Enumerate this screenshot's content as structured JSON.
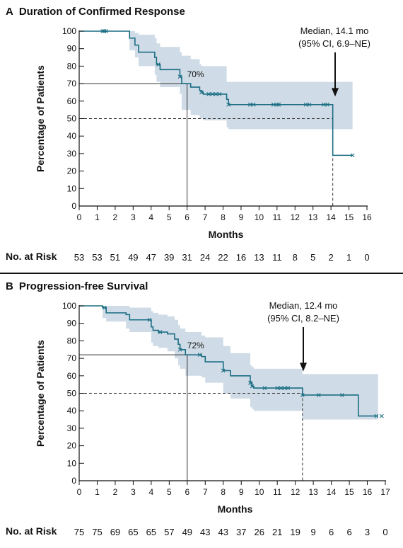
{
  "panels": [
    {
      "letter": "A",
      "title": "Duration of Confirmed Response",
      "chart_data": {
        "type": "line",
        "subtype": "kaplan-meier",
        "xlabel": "Months",
        "ylabel": "Percentage of Patients",
        "xlim": [
          0,
          16
        ],
        "ylim": [
          0,
          100
        ],
        "xticks": [
          0,
          1,
          2,
          3,
          4,
          5,
          6,
          7,
          8,
          9,
          10,
          11,
          12,
          13,
          14,
          15,
          16
        ],
        "yticks": [
          0,
          10,
          20,
          30,
          40,
          50,
          60,
          70,
          80,
          90,
          100
        ],
        "grid": false,
        "step_x": [
          0,
          2.8,
          3.1,
          3.3,
          4.2,
          4.3,
          4.5,
          5.6,
          5.7,
          6.2,
          6.7,
          6.8,
          6.9,
          7.0,
          8.2,
          8.3,
          14.0,
          14.1,
          15.2
        ],
        "step_y": [
          100,
          96,
          92,
          88,
          85,
          81,
          78,
          74,
          70,
          68,
          66,
          65,
          64,
          64,
          61,
          58,
          58,
          29,
          29
        ],
        "ci_upper": [
          100,
          100,
          99,
          98,
          96,
          93,
          91,
          88,
          86,
          84,
          81,
          80,
          80,
          80,
          71,
          71,
          71,
          71,
          71
        ],
        "ci_lower": [
          100,
          89,
          85,
          80,
          75,
          71,
          68,
          64,
          55,
          52,
          50,
          50,
          49,
          49,
          45,
          44,
          44,
          44,
          44
        ],
        "censor_x": [
          1.3,
          1.4,
          1.5,
          4.4,
          5.6,
          6.8,
          7.2,
          7.4,
          7.6,
          7.8,
          8.3,
          9.5,
          9.7,
          10.8,
          11.0,
          11.1,
          12.6,
          12.8,
          13.6,
          13.8,
          15.2
        ],
        "median_label_line1": "Median, 14.1 mo",
        "median_label_line2": "(95% CI, 6.9–NE)",
        "median_x": 14.1,
        "mark_label": "70%",
        "mark_x": 6,
        "mark_y": 70,
        "risk_values": [
          "53",
          "53",
          "51",
          "49",
          "47",
          "39",
          "31",
          "24",
          "22",
          "16",
          "13",
          "11",
          "8",
          "5",
          "2",
          "1",
          "0"
        ]
      }
    },
    {
      "letter": "B",
      "title": "Progression-free Survival",
      "chart_data": {
        "type": "line",
        "subtype": "kaplan-meier",
        "xlabel": "Months",
        "ylabel": "Percentage of Patients",
        "xlim": [
          0,
          17
        ],
        "ylim": [
          0,
          100
        ],
        "xticks": [
          0,
          1,
          2,
          3,
          4,
          5,
          6,
          7,
          8,
          9,
          10,
          11,
          12,
          13,
          14,
          15,
          16,
          17
        ],
        "yticks": [
          0,
          10,
          20,
          30,
          40,
          50,
          60,
          70,
          80,
          90,
          100
        ],
        "grid": false,
        "step_x": [
          0,
          1.3,
          1.5,
          2.6,
          2.8,
          4.0,
          4.1,
          4.4,
          4.9,
          5.3,
          5.5,
          5.6,
          5.9,
          6.8,
          7.0,
          8.0,
          8.4,
          9.5,
          9.6,
          9.7,
          12.4,
          15.5,
          16.6
        ],
        "step_y": [
          100,
          99,
          96,
          95,
          92,
          88,
          86,
          85,
          84,
          81,
          78,
          75,
          72,
          71,
          68,
          63,
          60,
          56,
          54,
          53,
          49,
          37,
          37
        ],
        "ci_upper": [
          100,
          100,
          100,
          100,
          99,
          97,
          96,
          95,
          94,
          92,
          89,
          87,
          85,
          83,
          82,
          77,
          73,
          66,
          65,
          64,
          61,
          61,
          61
        ],
        "ci_lower": [
          100,
          93,
          91,
          87,
          85,
          79,
          77,
          76,
          74,
          70,
          66,
          64,
          60,
          59,
          56,
          50,
          47,
          42,
          41,
          40,
          35,
          35,
          35
        ],
        "censor_x": [
          1.4,
          3.9,
          4.5,
          5.6,
          6.7,
          8.0,
          9.5,
          9.6,
          10.3,
          11.0,
          11.2,
          11.4,
          11.6,
          12.4,
          13.3,
          14.6,
          16.5,
          16.8
        ],
        "median_label_line1": "Median, 12.4 mo",
        "median_label_line2": "(95% CI, 8.2–NE)",
        "median_x": 12.4,
        "mark_label": "72%",
        "mark_x": 6,
        "mark_y": 72,
        "risk_values": [
          "75",
          "75",
          "69",
          "65",
          "65",
          "57",
          "49",
          "43",
          "43",
          "37",
          "26",
          "21",
          "19",
          "9",
          "6",
          "6",
          "3",
          "0"
        ]
      }
    }
  ],
  "risk_label": "No. at Risk",
  "colors": {
    "curve": "#1b6e84",
    "band": "#cfdbe6",
    "axis": "#111111",
    "reference": "#333333"
  }
}
